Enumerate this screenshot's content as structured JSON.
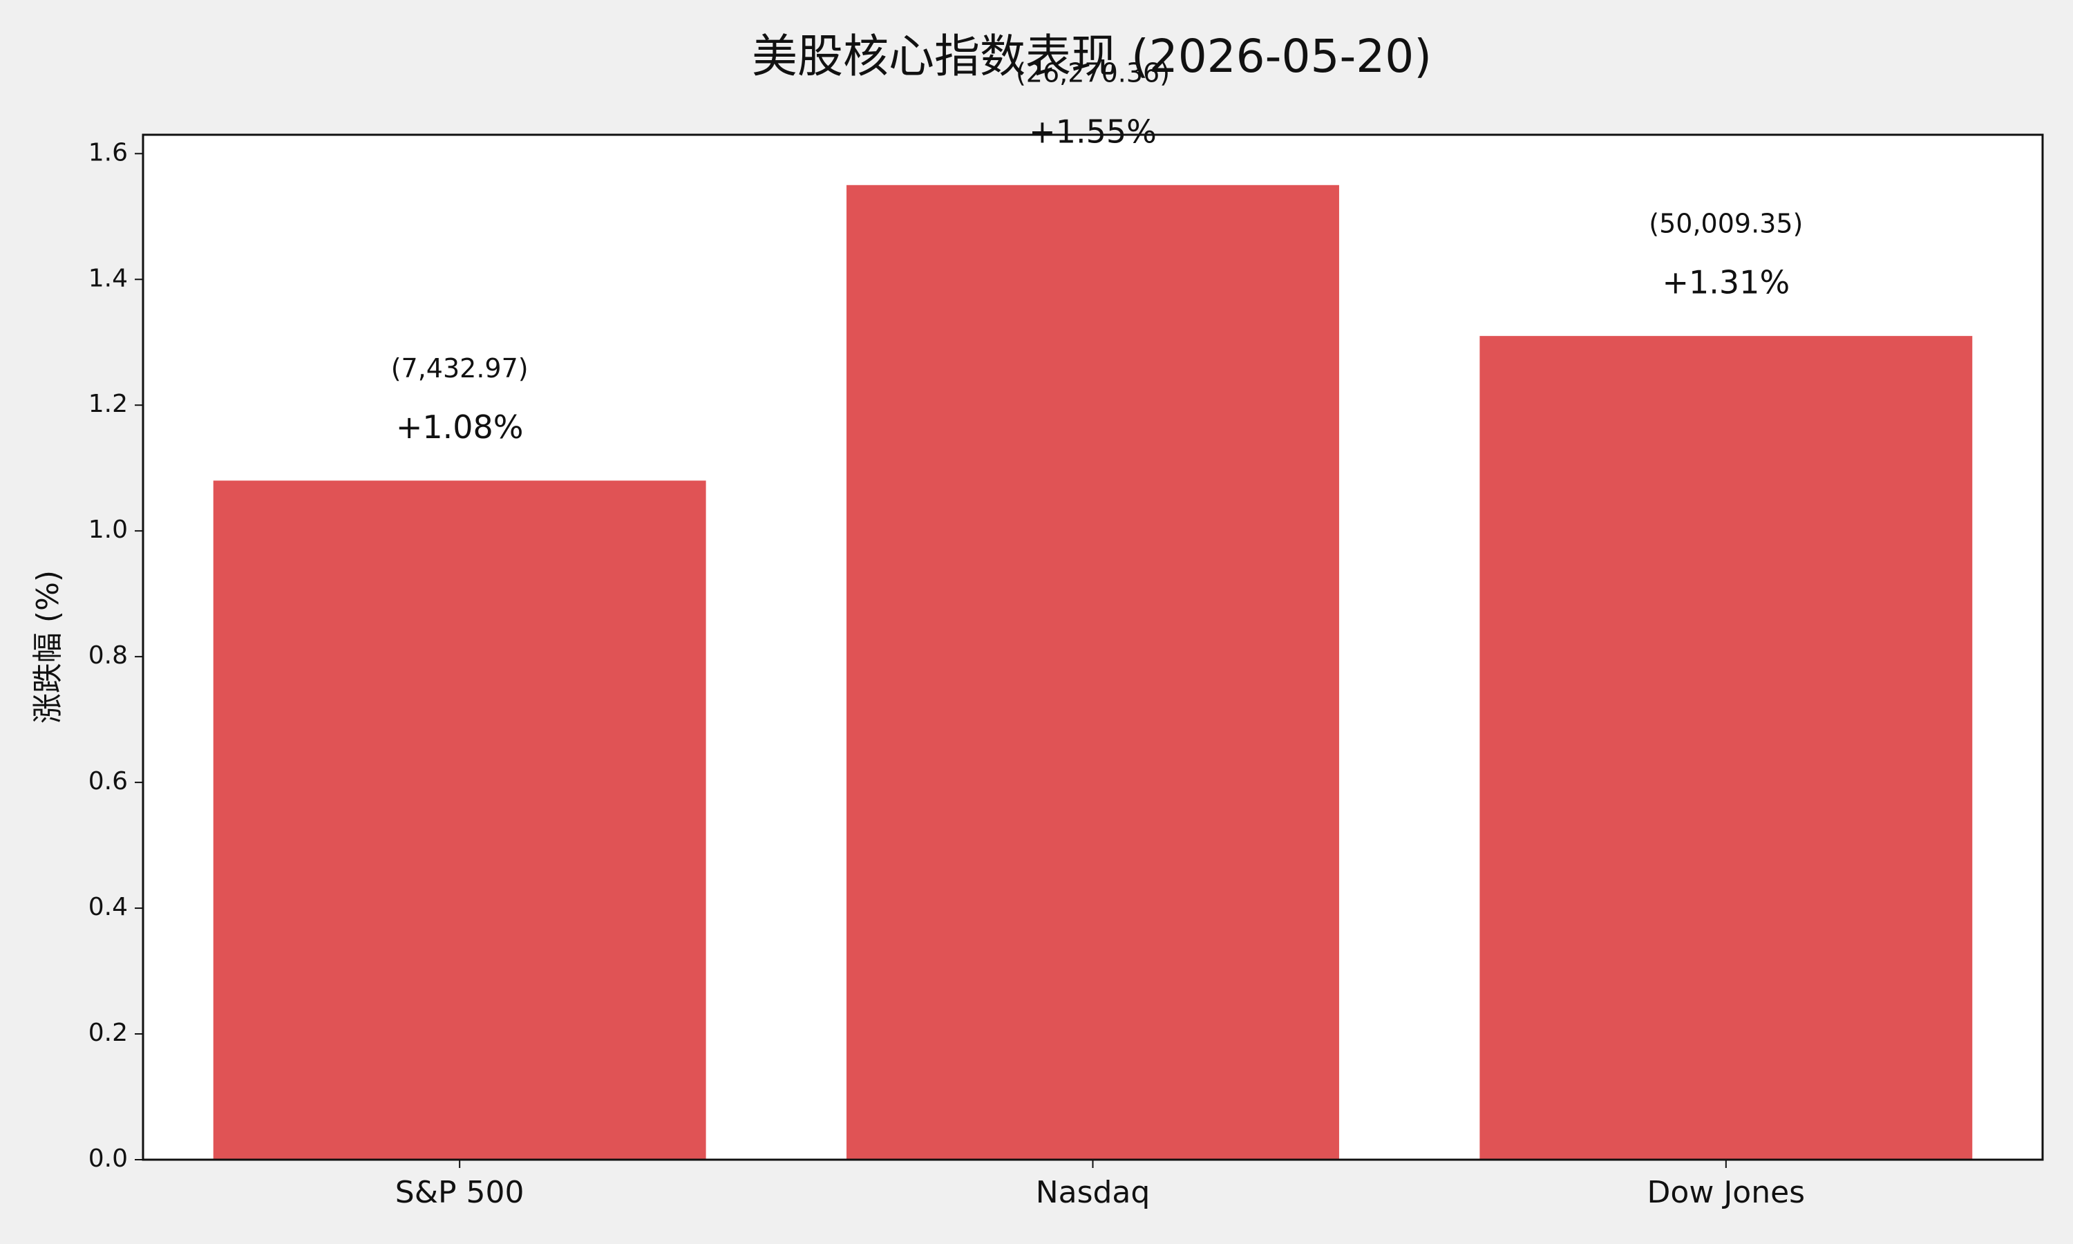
{
  "chart_data": {
    "type": "bar",
    "title": "美股核心指数表现 (2026-05-20)",
    "y_label": "涨跌幅 (%)",
    "categories": [
      "S&P 500",
      "Nasdaq",
      "Dow Jones"
    ],
    "values": [
      1.08,
      1.55,
      1.31
    ],
    "value_labels": [
      "+1.08%",
      "+1.55%",
      "+1.31%"
    ],
    "annotations": [
      "(7,432.97)",
      "(26,270.36)",
      "(50,009.35)"
    ],
    "color": "#e05355",
    "ylim": [
      0,
      1.63
    ],
    "yticks": [
      {
        "value": 0,
        "label": "0.0"
      },
      {
        "value": 0.2,
        "label": "0.2"
      },
      {
        "value": 0.4,
        "label": "0.4"
      },
      {
        "value": 0.6,
        "label": "0.6"
      },
      {
        "value": 0.8,
        "label": "0.8"
      },
      {
        "value": 1,
        "label": "1.0"
      },
      {
        "value": 1.2,
        "label": "1.2"
      },
      {
        "value": 1.4,
        "label": "1.4"
      },
      {
        "value": 1.6,
        "label": "1.6"
      }
    ],
    "grid": false
  }
}
